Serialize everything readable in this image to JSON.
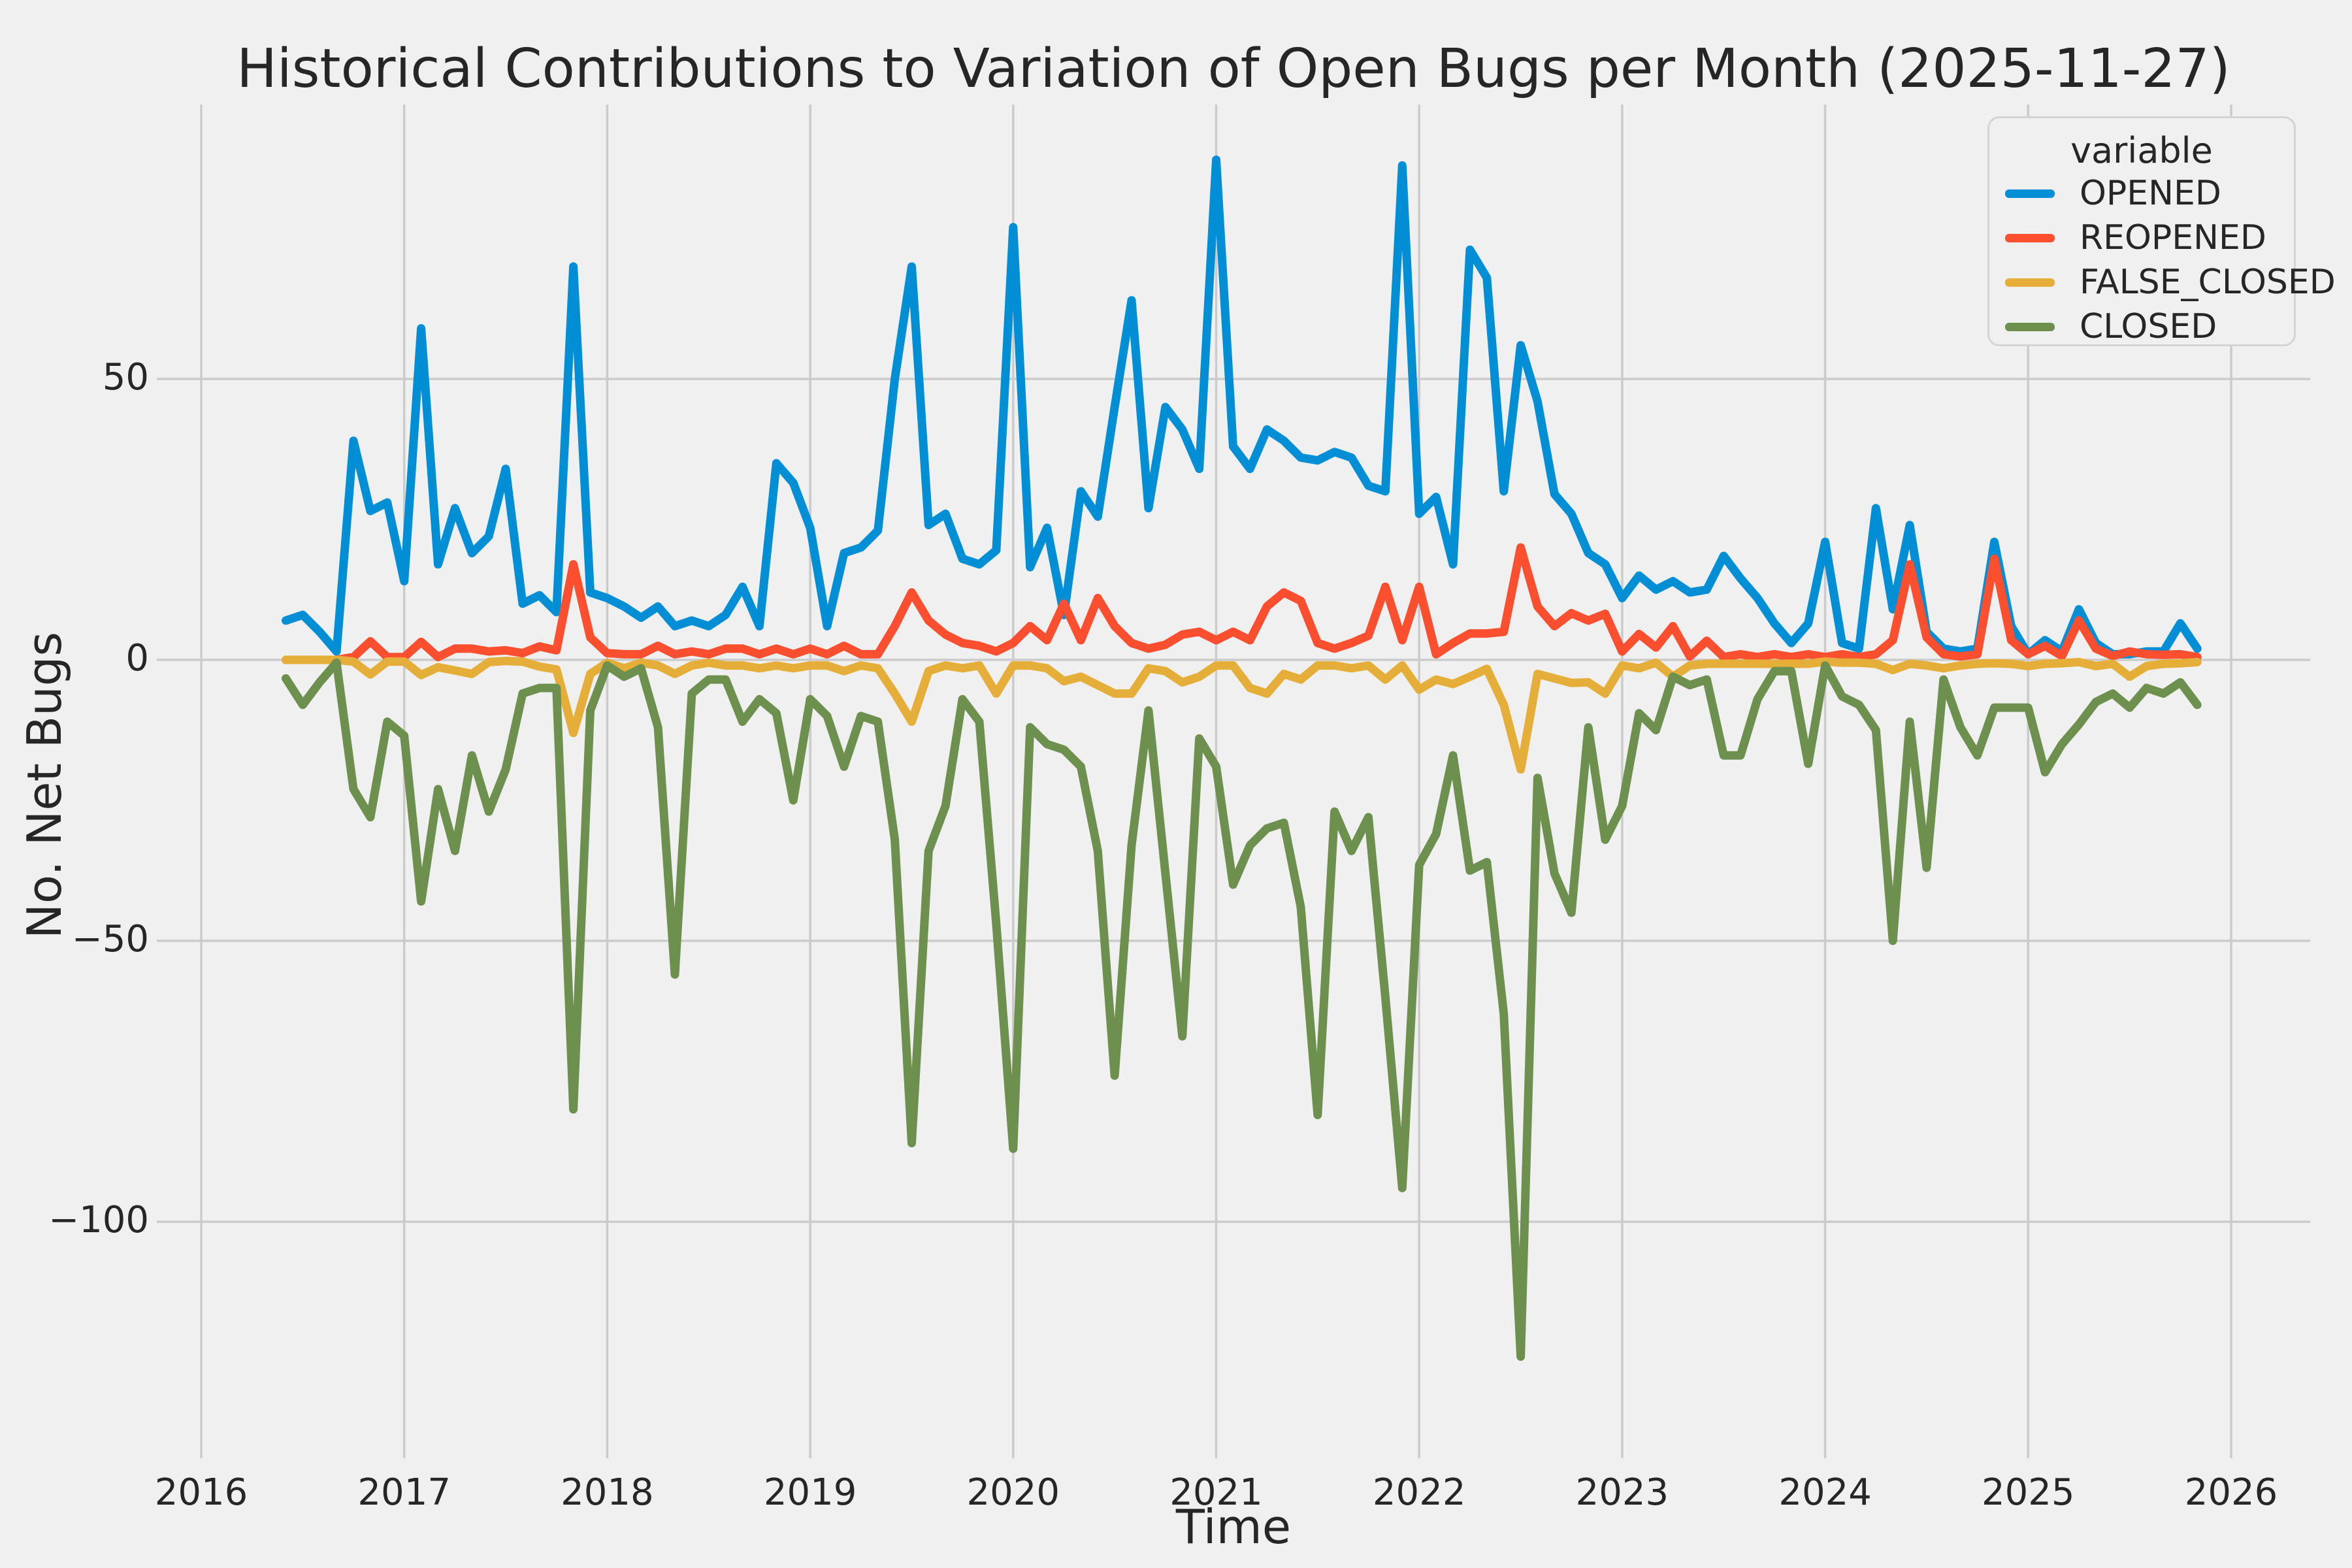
{
  "title": "Historical Contributions to Variation of Open Bugs per Month (2025-11-27)",
  "axes": {
    "x_label": "Time",
    "y_label": "No. Net Bugs",
    "x_ticks": [
      "2016",
      "2017",
      "2018",
      "2019",
      "2020",
      "2021",
      "2022",
      "2023",
      "2024",
      "2025",
      "2026"
    ],
    "y_ticks": [
      "50",
      "0",
      "−50",
      "−100"
    ],
    "y_tick_values": [
      50,
      0,
      -50,
      -100
    ]
  },
  "legend": {
    "title": "variable",
    "items": [
      {
        "label": "OPENED",
        "color": "#008fd5"
      },
      {
        "label": "REOPENED",
        "color": "#fc4f30"
      },
      {
        "label": "FALSE_CLOSED",
        "color": "#e5ae38"
      },
      {
        "label": "CLOSED",
        "color": "#6d904f"
      }
    ]
  },
  "colors": {
    "background": "#f0f0f0",
    "grid": "#cbcbcb",
    "text": "#262626"
  },
  "chart_data": {
    "type": "line",
    "title": "Historical Contributions to Variation of Open Bugs per Month (2025-11-27)",
    "xlabel": "Time",
    "ylabel": "No. Net Bugs",
    "grid": "on",
    "legend_position": "upper right",
    "x_axis_range": [
      2016,
      2026
    ],
    "y_axis_range": [
      -143,
      99
    ],
    "x_start": {
      "year": 2016,
      "month": 6
    },
    "x_end": {
      "year": 2025,
      "month": 11
    },
    "frequency": "monthly",
    "series": [
      {
        "name": "OPENED",
        "color": "#008fd5",
        "values": [
          7,
          8,
          5,
          1.5,
          39,
          26.5,
          28,
          14,
          59,
          17,
          27,
          19,
          22,
          34,
          10,
          11.5,
          8.5,
          70,
          12,
          11,
          9.5,
          7.5,
          9.5,
          6,
          7,
          6,
          8,
          13,
          6,
          35,
          31.5,
          23.5,
          6,
          19,
          20,
          23,
          50,
          70,
          24,
          26,
          18,
          17,
          19.5,
          77,
          16.5,
          23.5,
          8,
          30,
          25.5,
          45,
          64,
          27,
          45,
          41,
          34,
          89,
          38,
          34,
          41,
          39,
          36,
          35.5,
          37,
          36,
          31,
          30,
          88,
          26,
          29,
          17,
          73,
          68,
          30,
          56,
          46,
          29.5,
          26,
          19,
          17,
          11,
          15,
          12.5,
          14,
          12,
          12.5,
          18.5,
          14.5,
          11,
          6.5,
          3,
          6.5,
          21,
          3,
          2,
          27,
          9,
          24,
          5,
          2,
          1.5,
          2,
          21,
          6,
          1,
          3.5,
          1.5,
          9,
          3,
          1,
          1,
          1.5,
          1.5,
          6.5,
          2
        ]
      },
      {
        "name": "REOPENED",
        "color": "#fc4f30",
        "values": [
          0,
          0,
          0,
          0,
          0.5,
          3.3,
          0.5,
          0.5,
          3.2,
          0.5,
          2,
          2,
          1.5,
          1.7,
          1.2,
          2.4,
          1.7,
          17,
          4,
          1.2,
          1,
          1,
          2.5,
          1,
          1.5,
          1,
          2,
          2,
          1,
          2,
          1,
          2,
          1,
          2.5,
          1,
          1,
          6,
          12,
          7,
          4.5,
          3,
          2.5,
          1.5,
          3,
          6,
          3.5,
          10,
          3.5,
          11,
          6,
          3,
          2,
          2.7,
          4.5,
          5,
          3.5,
          5,
          3.5,
          9.5,
          12,
          10.5,
          3,
          2,
          3,
          4.3,
          13,
          3.5,
          13,
          1,
          3,
          4.7,
          4.7,
          5,
          20,
          9.5,
          6,
          8.3,
          7,
          8.2,
          1.5,
          4.6,
          2.2,
          6,
          0.6,
          3.4,
          0.5,
          1,
          0.5,
          1,
          0.5,
          1,
          0.5,
          1,
          0.5,
          1,
          3.5,
          17,
          4,
          1,
          0.6,
          1,
          18,
          3.5,
          1,
          2.5,
          0.7,
          7,
          2,
          0.7,
          1.5,
          1,
          0.9,
          1,
          0.5
        ]
      },
      {
        "name": "FALSE_CLOSED",
        "color": "#e5ae38",
        "values": [
          0,
          0,
          0,
          0,
          -0.3,
          -2.6,
          -0.3,
          -0.3,
          -2.7,
          -1.3,
          -1.9,
          -2.5,
          -0.4,
          -0.2,
          -0.3,
          -1.2,
          -1.7,
          -13,
          -2.5,
          -0.5,
          -1.5,
          -0.5,
          -1,
          -2.5,
          -1,
          -0.5,
          -1,
          -1,
          -1.5,
          -1,
          -1.5,
          -1,
          -1,
          -2,
          -1,
          -1.5,
          -6,
          -11,
          -2,
          -1,
          -1.5,
          -1,
          -6,
          -1,
          -1,
          -1.5,
          -3.8,
          -3,
          -4.5,
          -6,
          -6,
          -1.5,
          -2,
          -4,
          -3,
          -1,
          -1,
          -5,
          -6,
          -2.5,
          -3.5,
          -1,
          -1,
          -1.5,
          -1,
          -3.5,
          -1,
          -5.3,
          -3.5,
          -4.3,
          -3,
          -1.6,
          -8,
          -19.5,
          -2.5,
          -3.3,
          -4.1,
          -4,
          -6,
          -1,
          -1.5,
          -0.5,
          -3,
          -1,
          -0.7,
          -0.7,
          -0.7,
          -0.7,
          -0.7,
          -0.7,
          -0.7,
          -0.3,
          -0.5,
          -0.5,
          -0.7,
          -1.8,
          -0.7,
          -1,
          -1.5,
          -1,
          -0.7,
          -0.6,
          -0.7,
          -1.1,
          -0.7,
          -0.6,
          -0.4,
          -1.1,
          -0.7,
          -3,
          -1.1,
          -0.7,
          -0.6,
          -0.4
        ]
      },
      {
        "name": "CLOSED",
        "color": "#6d904f",
        "values": [
          -3.3,
          -8,
          -4,
          -0.5,
          -23,
          -28,
          -11,
          -13.5,
          -43,
          -23,
          -34,
          -17,
          -27,
          -19.5,
          -6,
          -5,
          -5,
          -80,
          -9,
          -1,
          -3,
          -1.5,
          -12,
          -56,
          -6,
          -3.5,
          -3.5,
          -11,
          -7,
          -9.5,
          -25,
          -7,
          -10,
          -19,
          -10,
          -11,
          -32,
          -86,
          -34,
          -26,
          -7,
          -11,
          -47,
          -87,
          -12,
          -15,
          -16,
          -19,
          -34,
          -74,
          -33,
          -9,
          -38,
          -67,
          -14,
          -19,
          -40,
          -33,
          -30,
          -29,
          -44,
          -81,
          -27,
          -34,
          -28,
          -60,
          -94,
          -36.5,
          -31,
          -17,
          -37.5,
          -36,
          -63,
          -124,
          -21,
          -38,
          -45,
          -12,
          -32,
          -26,
          -9.5,
          -12.5,
          -3,
          -4.5,
          -3.5,
          -17,
          -17,
          -7,
          -2,
          -2,
          -18.5,
          -1,
          -6.5,
          -8,
          -12.5,
          -50,
          -11,
          -37,
          -3.5,
          -12,
          -17,
          -8.5,
          -8.5,
          -8.5,
          -20,
          -15,
          -11.5,
          -7.5,
          -6,
          -8.5,
          -5,
          -6,
          -4,
          -8
        ]
      }
    ]
  }
}
